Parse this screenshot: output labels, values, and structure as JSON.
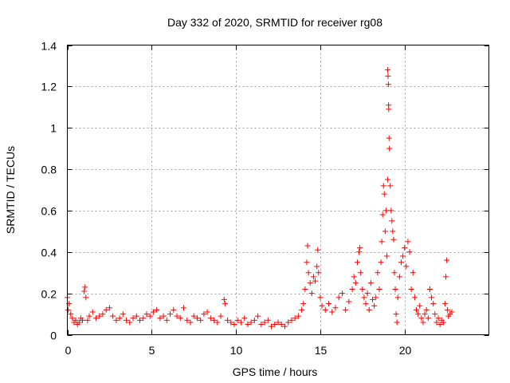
{
  "chart_data": {
    "type": "scatter",
    "title": "Day 332 of 2020, SRMTID for receiver rg08",
    "xlabel": "GPS time / hours",
    "ylabel": "SRMTID / TECUs",
    "xlim": [
      0,
      25
    ],
    "ylim": [
      0,
      1.4
    ],
    "x_ticks": [
      0,
      5,
      10,
      15,
      20
    ],
    "x_tick_labels": [
      "0",
      "5",
      "10",
      "15",
      "20"
    ],
    "y_ticks": [
      0,
      0.2,
      0.4,
      0.6,
      0.8,
      1.0,
      1.2,
      1.4
    ],
    "y_tick_labels": [
      "0",
      "0.2",
      "0.4",
      "0.6",
      "0.8",
      "1",
      "1.2",
      "1.4"
    ],
    "grid": true,
    "marker": "plus",
    "color": "#ff0000",
    "series": [
      {
        "name": "rg08",
        "x": [
          0.0,
          0.05,
          0.1,
          0.2,
          0.3,
          0.4,
          0.5,
          0.6,
          0.7,
          0.8,
          0.9,
          1.0,
          1.05,
          1.1,
          1.2,
          1.3,
          1.5,
          1.7,
          1.9,
          2.1,
          2.3,
          2.5,
          2.7,
          2.9,
          3.1,
          3.3,
          3.5,
          3.7,
          3.9,
          4.1,
          4.3,
          4.5,
          4.7,
          4.9,
          5.1,
          5.3,
          5.5,
          5.7,
          5.9,
          6.1,
          6.3,
          6.5,
          6.7,
          6.9,
          7.1,
          7.3,
          7.5,
          7.7,
          7.9,
          8.1,
          8.3,
          8.5,
          8.7,
          8.9,
          9.1,
          9.3,
          9.35,
          9.5,
          9.7,
          9.9,
          10.1,
          10.3,
          10.5,
          10.7,
          10.9,
          11.1,
          11.3,
          11.5,
          11.7,
          11.9,
          12.1,
          12.3,
          12.5,
          12.7,
          12.9,
          13.1,
          13.3,
          13.5,
          13.7,
          13.9,
          14.0,
          14.1,
          14.2,
          14.25,
          14.3,
          14.4,
          14.5,
          14.6,
          14.7,
          14.8,
          14.85,
          14.9,
          15.0,
          15.1,
          15.3,
          15.5,
          15.7,
          15.9,
          16.1,
          16.3,
          16.5,
          16.7,
          16.9,
          17.0,
          17.1,
          17.2,
          17.3,
          17.35,
          17.4,
          17.5,
          17.6,
          17.7,
          17.8,
          17.9,
          18.0,
          18.1,
          18.2,
          18.3,
          18.4,
          18.5,
          18.6,
          18.65,
          18.7,
          18.75,
          18.8,
          18.85,
          18.9,
          18.95,
          19.0,
          19.0,
          19.02,
          19.04,
          19.05,
          19.06,
          19.08,
          19.1,
          19.15,
          19.2,
          19.25,
          19.3,
          19.35,
          19.4,
          19.45,
          19.5,
          19.55,
          19.6,
          19.7,
          19.8,
          19.9,
          20.0,
          20.1,
          20.2,
          20.3,
          20.4,
          20.5,
          20.6,
          20.7,
          20.8,
          20.9,
          21.0,
          21.1,
          21.2,
          21.3,
          21.4,
          21.5,
          21.6,
          21.7,
          21.8,
          21.9,
          22.0,
          22.1,
          22.2,
          22.3,
          22.4,
          22.45,
          22.5,
          22.55,
          22.6,
          22.7,
          22.8
        ],
        "y": [
          0.18,
          0.12,
          0.15,
          0.1,
          0.08,
          0.06,
          0.07,
          0.05,
          0.06,
          0.08,
          0.07,
          0.21,
          0.23,
          0.18,
          0.07,
          0.09,
          0.11,
          0.08,
          0.09,
          0.1,
          0.12,
          0.13,
          0.09,
          0.07,
          0.08,
          0.1,
          0.07,
          0.06,
          0.08,
          0.09,
          0.07,
          0.08,
          0.1,
          0.09,
          0.11,
          0.12,
          0.08,
          0.09,
          0.07,
          0.1,
          0.12,
          0.09,
          0.08,
          0.13,
          0.07,
          0.06,
          0.09,
          0.08,
          0.07,
          0.1,
          0.11,
          0.08,
          0.07,
          0.06,
          0.09,
          0.17,
          0.15,
          0.07,
          0.06,
          0.05,
          0.07,
          0.06,
          0.08,
          0.05,
          0.06,
          0.07,
          0.09,
          0.05,
          0.06,
          0.07,
          0.04,
          0.05,
          0.06,
          0.05,
          0.04,
          0.06,
          0.07,
          0.08,
          0.09,
          0.12,
          0.15,
          0.22,
          0.35,
          0.43,
          0.3,
          0.25,
          0.2,
          0.28,
          0.26,
          0.33,
          0.41,
          0.3,
          0.18,
          0.14,
          0.12,
          0.15,
          0.11,
          0.13,
          0.18,
          0.2,
          0.12,
          0.16,
          0.22,
          0.28,
          0.25,
          0.35,
          0.4,
          0.42,
          0.3,
          0.22,
          0.18,
          0.15,
          0.2,
          0.12,
          0.25,
          0.17,
          0.14,
          0.18,
          0.3,
          0.22,
          0.35,
          0.45,
          0.58,
          0.72,
          0.68,
          0.5,
          0.6,
          0.38,
          0.75,
          1.28,
          1.25,
          1.21,
          1.11,
          1.09,
          0.95,
          0.9,
          0.72,
          0.6,
          0.55,
          0.5,
          0.46,
          0.3,
          0.22,
          0.1,
          0.06,
          0.18,
          0.28,
          0.35,
          0.38,
          0.42,
          0.33,
          0.45,
          0.4,
          0.22,
          0.3,
          0.18,
          0.12,
          0.1,
          0.14,
          0.08,
          0.06,
          0.1,
          0.12,
          0.08,
          0.22,
          0.18,
          0.15,
          0.1,
          0.06,
          0.08,
          0.05,
          0.07,
          0.06,
          0.15,
          0.28,
          0.36,
          0.12,
          0.09,
          0.1,
          0.11
        ]
      }
    ]
  }
}
